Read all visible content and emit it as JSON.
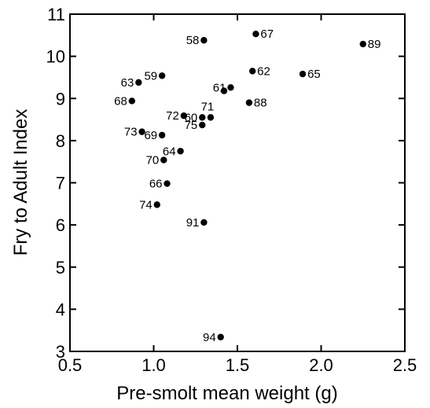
{
  "chart_data": {
    "type": "scatter",
    "title": "",
    "xlabel": "Pre-smolt mean weight (g)",
    "ylabel": "Fry to Adult Index",
    "xlim": [
      0.5,
      2.5
    ],
    "ylim": [
      3,
      11
    ],
    "x_ticks": [
      0.5,
      1.0,
      1.5,
      2.0,
      2.5
    ],
    "x_tick_labels": [
      "0.5",
      "1.0",
      "1.5",
      "2.0",
      "2.5"
    ],
    "y_ticks": [
      3,
      4,
      5,
      6,
      7,
      8,
      9,
      10,
      11
    ],
    "y_tick_labels": [
      "3",
      "4",
      "5",
      "6",
      "7",
      "8",
      "9",
      "10",
      "11"
    ],
    "grid": false,
    "marker_color": "#000000",
    "points": [
      {
        "label": "58",
        "x": 1.3,
        "y": 10.38,
        "label_pos": "left"
      },
      {
        "label": "67",
        "x": 1.61,
        "y": 10.53,
        "label_pos": "right"
      },
      {
        "label": "89",
        "x": 2.25,
        "y": 10.29,
        "label_pos": "right"
      },
      {
        "label": "59",
        "x": 1.05,
        "y": 9.54,
        "label_pos": "left"
      },
      {
        "label": "63",
        "x": 0.91,
        "y": 9.38,
        "label_pos": "left"
      },
      {
        "label": "62",
        "x": 1.59,
        "y": 9.65,
        "label_pos": "right"
      },
      {
        "label": "65",
        "x": 1.89,
        "y": 9.58,
        "label_pos": "right"
      },
      {
        "label": "61",
        "x": 1.46,
        "y": 9.26,
        "label_pos": "left"
      },
      {
        "label": "",
        "x": 1.42,
        "y": 9.18,
        "label_pos": "none"
      },
      {
        "label": "68",
        "x": 0.87,
        "y": 8.94,
        "label_pos": "left"
      },
      {
        "label": "88",
        "x": 1.57,
        "y": 8.9,
        "label_pos": "right"
      },
      {
        "label": "71",
        "x": 1.34,
        "y": 8.55,
        "label_pos": "above"
      },
      {
        "label": "72",
        "x": 1.18,
        "y": 8.59,
        "label_pos": "left"
      },
      {
        "label": "60",
        "x": 1.29,
        "y": 8.55,
        "label_pos": "left"
      },
      {
        "label": "75",
        "x": 1.29,
        "y": 8.37,
        "label_pos": "left"
      },
      {
        "label": "73",
        "x": 0.93,
        "y": 8.21,
        "label_pos": "left"
      },
      {
        "label": "69",
        "x": 1.05,
        "y": 8.13,
        "label_pos": "left"
      },
      {
        "label": "64",
        "x": 1.16,
        "y": 7.75,
        "label_pos": "left"
      },
      {
        "label": "70",
        "x": 1.06,
        "y": 7.54,
        "label_pos": "left"
      },
      {
        "label": "66",
        "x": 1.08,
        "y": 6.98,
        "label_pos": "left"
      },
      {
        "label": "74",
        "x": 1.02,
        "y": 6.48,
        "label_pos": "left"
      },
      {
        "label": "91",
        "x": 1.3,
        "y": 6.06,
        "label_pos": "left"
      },
      {
        "label": "94",
        "x": 1.4,
        "y": 3.34,
        "label_pos": "left"
      }
    ]
  }
}
